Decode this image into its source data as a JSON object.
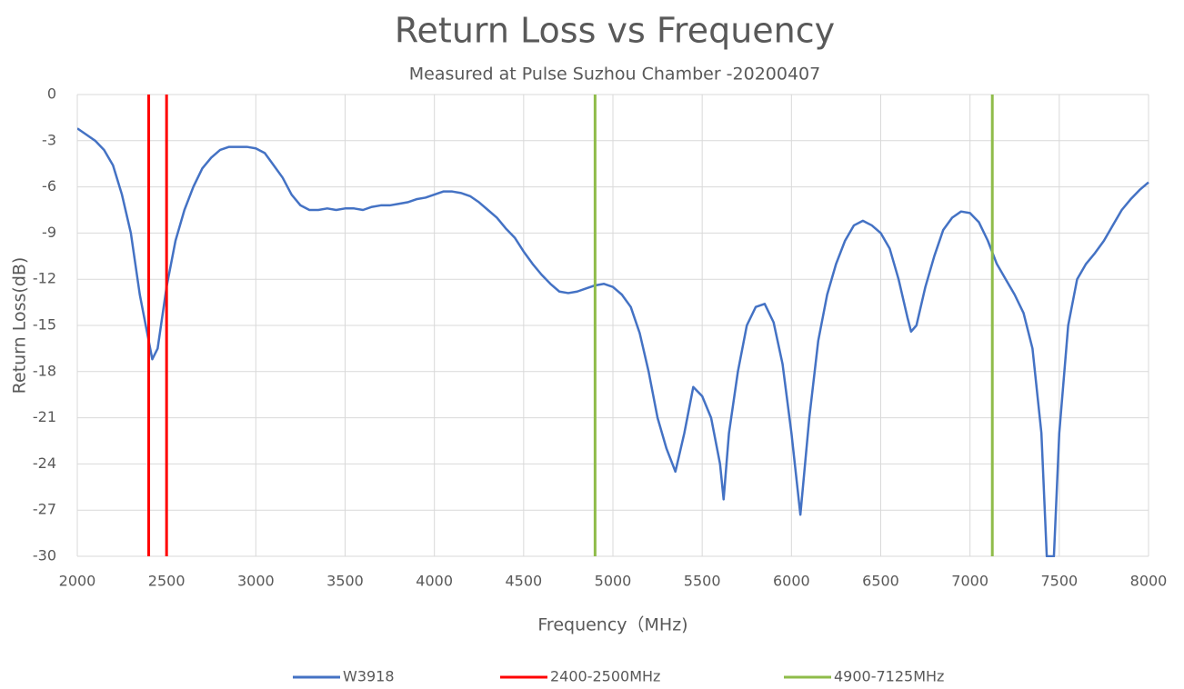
{
  "chart_data": {
    "type": "line",
    "title": "Return Loss vs Frequency",
    "subtitle": "Measured at Pulse Suzhou Chamber -20200407",
    "x_label": "Frequency（MHz)",
    "y_label": "Return Loss(dB)",
    "xlim": [
      2000,
      8000
    ],
    "xticks": [
      2000,
      2500,
      3000,
      3500,
      4000,
      4500,
      5000,
      5500,
      6000,
      6500,
      7000,
      7500,
      8000
    ],
    "ylim": [
      -30,
      0
    ],
    "yticks": [
      0,
      -3,
      -6,
      -9,
      -12,
      -15,
      -18,
      -21,
      -24,
      -27,
      -30
    ],
    "grid": true,
    "legend": "bottom",
    "series": [
      {
        "name": "W3918",
        "color": "#4472c4",
        "x": [
          2000,
          2050,
          2100,
          2150,
          2200,
          2250,
          2300,
          2350,
          2400,
          2420,
          2450,
          2500,
          2550,
          2600,
          2650,
          2700,
          2750,
          2800,
          2850,
          2900,
          2950,
          3000,
          3050,
          3100,
          3150,
          3200,
          3250,
          3300,
          3350,
          3400,
          3450,
          3500,
          3550,
          3600,
          3650,
          3700,
          3750,
          3800,
          3850,
          3900,
          3950,
          4000,
          4050,
          4100,
          4150,
          4200,
          4250,
          4300,
          4350,
          4400,
          4450,
          4500,
          4550,
          4600,
          4650,
          4700,
          4750,
          4800,
          4850,
          4900,
          4950,
          5000,
          5050,
          5100,
          5150,
          5200,
          5250,
          5300,
          5350,
          5400,
          5450,
          5500,
          5550,
          5600,
          5620,
          5650,
          5700,
          5750,
          5800,
          5850,
          5900,
          5950,
          6000,
          6050,
          6100,
          6150,
          6200,
          6250,
          6300,
          6350,
          6400,
          6450,
          6500,
          6550,
          6600,
          6650,
          6670,
          6700,
          6750,
          6800,
          6850,
          6900,
          6950,
          7000,
          7050,
          7100,
          7150,
          7200,
          7250,
          7300,
          7350,
          7400,
          7430,
          7470,
          7500,
          7550,
          7600,
          7650,
          7700,
          7750,
          7800,
          7850,
          7900,
          7950,
          8000
        ],
        "values": [
          -2.2,
          -2.6,
          -3.0,
          -3.6,
          -4.6,
          -6.5,
          -9,
          -13,
          -16,
          -17.2,
          -16.5,
          -12.5,
          -9.5,
          -7.5,
          -6,
          -4.8,
          -4.1,
          -3.6,
          -3.4,
          -3.4,
          -3.4,
          -3.5,
          -3.8,
          -4.6,
          -5.4,
          -6.5,
          -7.2,
          -7.5,
          -7.5,
          -7.4,
          -7.5,
          -7.4,
          -7.4,
          -7.5,
          -7.3,
          -7.2,
          -7.2,
          -7.1,
          -7.0,
          -6.8,
          -6.7,
          -6.5,
          -6.3,
          -6.3,
          -6.4,
          -6.6,
          -7.0,
          -7.5,
          -8.0,
          -8.7,
          -9.3,
          -10.2,
          -11,
          -11.7,
          -12.3,
          -12.8,
          -12.9,
          -12.8,
          -12.6,
          -12.4,
          -12.3,
          -12.5,
          -13,
          -13.8,
          -15.5,
          -18,
          -21,
          -23,
          -24.5,
          -22,
          -19,
          -19.6,
          -21,
          -24,
          -26.3,
          -22,
          -18,
          -15,
          -13.8,
          -13.6,
          -14.8,
          -17.5,
          -22,
          -27.3,
          -21,
          -16,
          -13,
          -11,
          -9.5,
          -8.5,
          -8.2,
          -8.5,
          -9,
          -10,
          -12,
          -14.5,
          -15.4,
          -15,
          -12.5,
          -10.5,
          -8.8,
          -8.0,
          -7.6,
          -7.7,
          -8.3,
          -9.5,
          -11,
          -12,
          -13,
          -14.2,
          -16.5,
          -22,
          -30,
          -30,
          -22,
          -15,
          -12,
          -11,
          -10.3,
          -9.5,
          -8.5,
          -7.5,
          -6.8,
          -6.2,
          -5.7
        ]
      },
      {
        "name": "2400-2500MHz",
        "color": "#ff0000",
        "x": [
          2400,
          2400,
          null,
          2500,
          2500
        ],
        "values": [
          -30,
          0,
          null,
          -30,
          0
        ]
      },
      {
        "name": "4900-7125MHz",
        "color": "#8fbc4a",
        "x": [
          4900,
          4900,
          null,
          7125,
          7125
        ],
        "values": [
          -30,
          0,
          null,
          -30,
          0
        ]
      }
    ]
  }
}
